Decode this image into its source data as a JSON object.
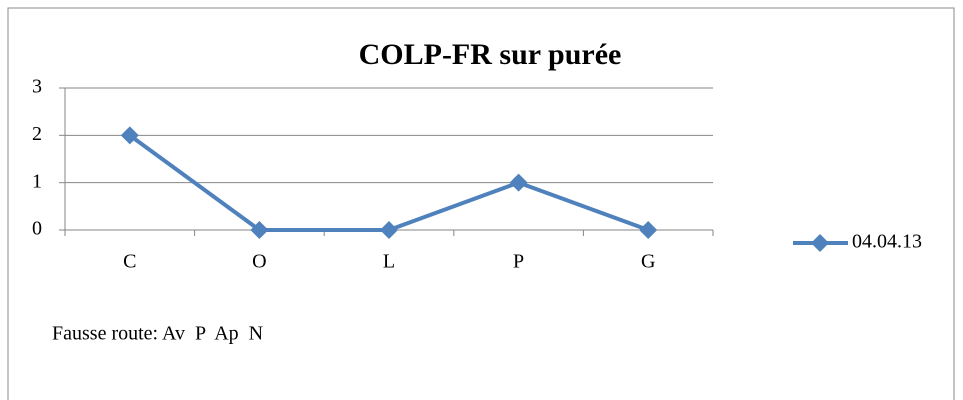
{
  "chart_data": {
    "type": "line",
    "title": "COLP-FR sur purée",
    "categories": [
      "C",
      "O",
      "L",
      "P",
      "G"
    ],
    "series": [
      {
        "name": "04.04.13",
        "color": "#4f81bd",
        "values": [
          2,
          0,
          0,
          1,
          0
        ]
      }
    ],
    "ylim": [
      0,
      3
    ],
    "yticks": [
      0,
      1,
      2,
      3
    ],
    "grid": true,
    "legend": "right",
    "annotation": "Fausse route: Av  P  Ap",
    "annotation_highlight": "N",
    "highlight_color": "#ff0000"
  }
}
